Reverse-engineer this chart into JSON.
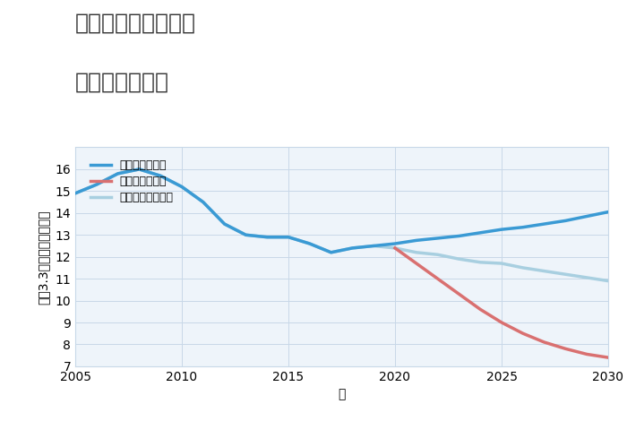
{
  "title_line1": "三重県松阪市庄町の",
  "title_line2": "土地の価格推移",
  "xlabel": "年",
  "ylabel": "坪（3.3㎡）単価（万円）",
  "ylim": [
    7,
    17
  ],
  "xlim": [
    2005,
    2030
  ],
  "yticks": [
    7,
    8,
    9,
    10,
    11,
    12,
    13,
    14,
    15,
    16
  ],
  "xticks": [
    2005,
    2010,
    2015,
    2020,
    2025,
    2030
  ],
  "background_color": "#ffffff",
  "plot_bg_color": "#eef4fa",
  "grid_color": "#c8d8e8",
  "good_scenario": {
    "label": "グッドシナリオ",
    "color": "#3a9ad4",
    "linewidth": 2.5,
    "x": [
      2005,
      2006,
      2007,
      2008,
      2009,
      2010,
      2011,
      2012,
      2013,
      2014,
      2015,
      2016,
      2017,
      2018,
      2019,
      2020,
      2021,
      2022,
      2023,
      2024,
      2025,
      2026,
      2027,
      2028,
      2029,
      2030
    ],
    "y": [
      14.9,
      15.3,
      15.8,
      16.0,
      15.7,
      15.2,
      14.5,
      13.5,
      13.0,
      12.9,
      12.9,
      12.6,
      12.2,
      12.4,
      12.5,
      12.6,
      12.75,
      12.85,
      12.95,
      13.1,
      13.25,
      13.35,
      13.5,
      13.65,
      13.85,
      14.05
    ]
  },
  "bad_scenario": {
    "label": "バッドシナリオ",
    "color": "#d97070",
    "linewidth": 2.5,
    "x": [
      2020,
      2021,
      2022,
      2023,
      2024,
      2025,
      2026,
      2027,
      2028,
      2029,
      2030
    ],
    "y": [
      12.4,
      11.7,
      11.0,
      10.3,
      9.6,
      9.0,
      8.5,
      8.1,
      7.8,
      7.55,
      7.4
    ]
  },
  "normal_scenario": {
    "label": "ノーマルシナリオ",
    "color": "#a8cfe0",
    "linewidth": 2.5,
    "x": [
      2005,
      2006,
      2007,
      2008,
      2009,
      2010,
      2011,
      2012,
      2013,
      2014,
      2015,
      2016,
      2017,
      2018,
      2019,
      2020,
      2021,
      2022,
      2023,
      2024,
      2025,
      2026,
      2027,
      2028,
      2029,
      2030
    ],
    "y": [
      14.9,
      15.3,
      15.8,
      16.0,
      15.7,
      15.2,
      14.5,
      13.5,
      13.0,
      12.9,
      12.9,
      12.6,
      12.2,
      12.4,
      12.5,
      12.4,
      12.2,
      12.1,
      11.9,
      11.75,
      11.7,
      11.5,
      11.35,
      11.2,
      11.05,
      10.9
    ]
  },
  "legend_labels": [
    "グッドシナリオ",
    "バッドシナリオ",
    "ノーマルシナリオ"
  ],
  "legend_colors": [
    "#3a9ad4",
    "#d97070",
    "#a8cfe0"
  ],
  "title_fontsize": 18,
  "label_fontsize": 10,
  "tick_fontsize": 10
}
